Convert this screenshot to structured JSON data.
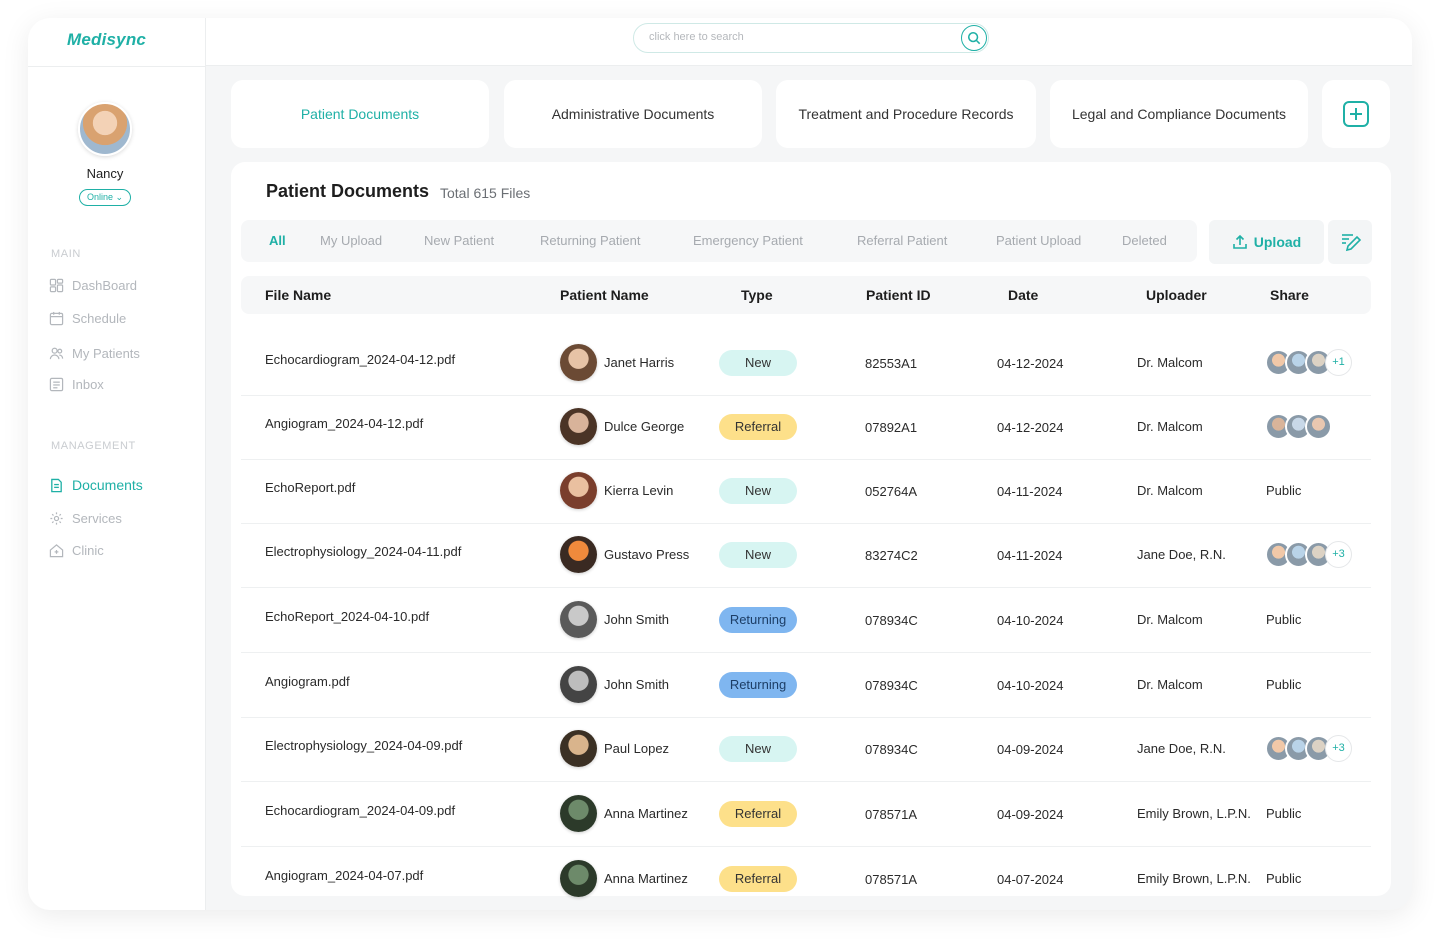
{
  "app": {
    "logo": "Medisync"
  },
  "search": {
    "placeholder": "click here to search"
  },
  "user": {
    "name": "Nancy",
    "status": "Online ⌄"
  },
  "sidebar": {
    "main_label": "MAIN",
    "main_items": [
      {
        "label": "DashBoard",
        "icon": "dashboard-icon"
      },
      {
        "label": "Schedule",
        "icon": "calendar-icon"
      },
      {
        "label": "My Patients",
        "icon": "patients-icon"
      },
      {
        "label": "Inbox",
        "icon": "inbox-icon"
      }
    ],
    "management_label": "MANAGEMENT",
    "management_items": [
      {
        "label": "Documents",
        "icon": "document-icon",
        "active": true
      },
      {
        "label": "Services",
        "icon": "gear-icon"
      },
      {
        "label": "Clinic",
        "icon": "clinic-icon"
      }
    ]
  },
  "tabs": [
    {
      "label": "Patient Documents",
      "active": true
    },
    {
      "label": "Administrative Documents"
    },
    {
      "label": "Treatment and Procedure Records"
    },
    {
      "label": "Legal and Compliance Documents"
    }
  ],
  "panel": {
    "title": "Patient Documents",
    "count": "Total 615 Files",
    "filters": [
      "All",
      "My Upload",
      "New Patient",
      "Returning Patient",
      "Emergency Patient",
      "Referral Patient",
      "Patient Upload",
      "Deleted"
    ],
    "upload_label": "Upload"
  },
  "colors": {
    "accent": "#1fb0a6",
    "new": "#d7f5f2",
    "referral": "#fde08a",
    "returning": "#7fb6f0"
  },
  "table": {
    "columns": [
      "File Name",
      "Patient Name",
      "Type",
      "Patient ID",
      "Date",
      "Uploader",
      "Share"
    ],
    "rows": [
      {
        "file": "Echocardiogram_2024-04-12.pdf",
        "patient": "Janet Harris",
        "type": "New",
        "id": "82553A1",
        "date": "04-12-2024",
        "uploader": "Dr. Malcom",
        "share": {
          "avatars": 3,
          "more": "+1"
        }
      },
      {
        "file": "Angiogram_2024-04-12.pdf",
        "patient": "Dulce George",
        "type": "Referral",
        "id": "07892A1",
        "date": "04-12-2024",
        "uploader": "Dr. Malcom",
        "share": {
          "avatars": 3,
          "more": ""
        }
      },
      {
        "file": "EchoReport.pdf",
        "patient": "Kierra Levin",
        "type": "New",
        "id": "052764A",
        "date": "04-11-2024",
        "uploader": "Dr. Malcom",
        "share": {
          "text": "Public"
        }
      },
      {
        "file": "Electrophysiology_2024-04-11.pdf",
        "patient": "Gustavo Press",
        "type": "New",
        "id": "83274C2",
        "date": "04-11-2024",
        "uploader": "Jane Doe, R.N.",
        "share": {
          "avatars": 3,
          "more": "+3"
        }
      },
      {
        "file": "EchoReport_2024-04-10.pdf",
        "patient": "John Smith",
        "type": "Returning",
        "id": "078934C",
        "date": "04-10-2024",
        "uploader": "Dr. Malcom",
        "share": {
          "text": "Public"
        }
      },
      {
        "file": "Angiogram.pdf",
        "patient": "John Smith",
        "type": "Returning",
        "id": "078934C",
        "date": "04-10-2024",
        "uploader": "Dr. Malcom",
        "share": {
          "text": "Public"
        }
      },
      {
        "file": "Electrophysiology_2024-04-09.pdf",
        "patient": "Paul Lopez",
        "type": "New",
        "id": "078934C",
        "date": "04-09-2024",
        "uploader": "Jane Doe, R.N.",
        "share": {
          "avatars": 3,
          "more": "+3"
        }
      },
      {
        "file": "Echocardiogram_2024-04-09.pdf",
        "patient": "Anna Martinez",
        "type": "Referral",
        "id": "078571A",
        "date": "04-09-2024",
        "uploader": "Emily Brown, L.P.N.",
        "share": {
          "text": "Public"
        }
      },
      {
        "file": "Angiogram_2024-04-07.pdf",
        "patient": "Anna Martinez",
        "type": "Referral",
        "id": "078571A",
        "date": "04-07-2024",
        "uploader": "Emily Brown, L.P.N.",
        "share": {
          "text": "Public"
        }
      }
    ]
  }
}
